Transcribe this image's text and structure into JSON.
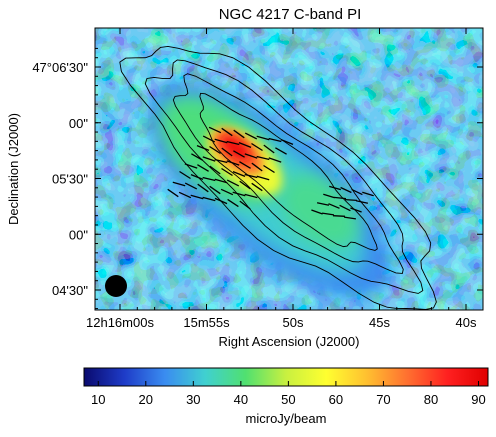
{
  "chart_data": {
    "type": "heatmap",
    "title": "NGC 4217   C-band   PI",
    "xlabel": "Right Ascension (J2000)",
    "ylabel": "Declination (J2000)",
    "x_ticks": [
      {
        "label": "12h16m00s",
        "value_s": 0
      },
      {
        "label": "15m55s",
        "value_s": -5
      },
      {
        "label": "50s",
        "value_s": -10
      },
      {
        "label": "45s",
        "value_s": -15
      },
      {
        "label": "40s",
        "value_s": -20
      }
    ],
    "y_ticks": [
      {
        "label": "47°06'30\"",
        "value_arcsec": 390
      },
      {
        "label": "00\"",
        "value_arcsec": 360
      },
      {
        "label": "05'30\"",
        "value_arcsec": 330
      },
      {
        "label": "00\"",
        "value_arcsec": 300
      },
      {
        "label": "04'30\"",
        "value_arcsec": 270
      }
    ],
    "colorbar": {
      "label": "microJy/beam",
      "range": [
        7,
        92
      ],
      "ticks": [
        10,
        20,
        30,
        40,
        50,
        60,
        70,
        80,
        90
      ],
      "colormap": [
        "#0a0a6e",
        "#1e3cc8",
        "#3a8cf0",
        "#40d0d0",
        "#50e070",
        "#c8f040",
        "#ffff30",
        "#ffc030",
        "#ff7030",
        "#ff2020",
        "#e00000"
      ]
    },
    "emission": {
      "peak_microjy_per_beam": 90,
      "peak_location": {
        "ra_s": -7.5,
        "dec_arcsec": 342
      },
      "galaxy_position_angle_deg": 40
    },
    "contour_levels_count": 4,
    "beam_shape": "circle",
    "beam_location": "bottom-left",
    "vectors": "magnetic field orientation (black line segments)"
  }
}
